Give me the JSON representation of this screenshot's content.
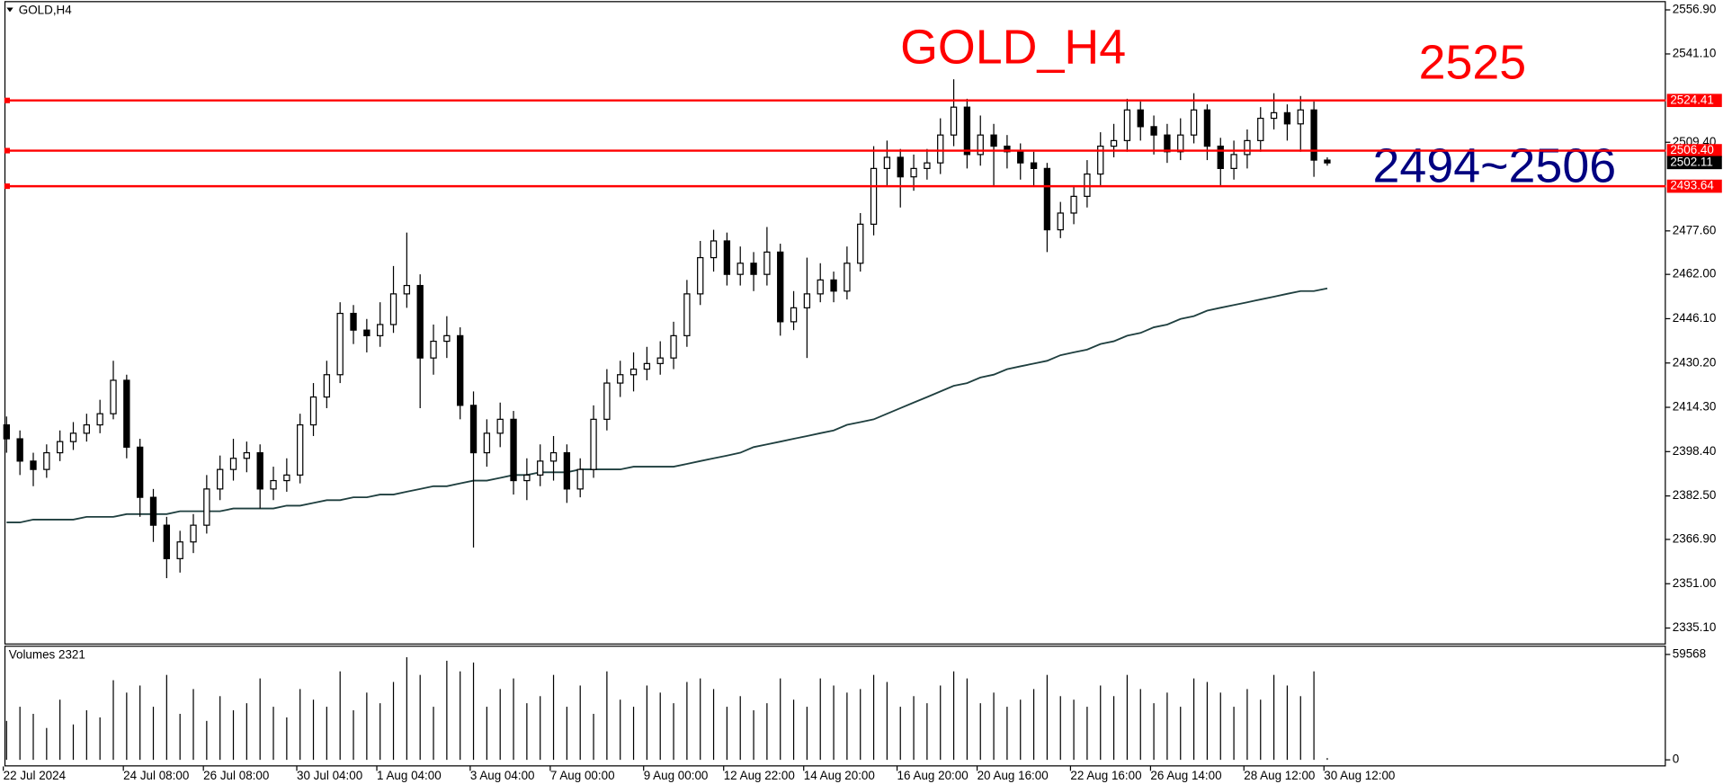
{
  "chart_data": {
    "type": "candlestick",
    "title": "GOLD,H4",
    "annotations": [
      "GOLD_H4",
      "2525",
      "2494~2506"
    ],
    "categories": [
      "22 Jul 2024",
      null,
      null,
      null,
      null,
      null,
      null,
      null,
      null,
      "24 Jul 08:00",
      null,
      null,
      null,
      null,
      null,
      "26 Jul 08:00",
      null,
      null,
      null,
      null,
      null,
      null,
      "30 Jul 04:00",
      null,
      null,
      null,
      null,
      null,
      "1 Aug 04:00",
      null,
      null,
      null,
      null,
      null,
      null,
      "3 Aug 04:00",
      null,
      null,
      null,
      null,
      null,
      "7 Aug 00:00",
      null,
      null,
      null,
      null,
      null,
      null,
      "9 Aug 00:00",
      null,
      null,
      null,
      null,
      null,
      "12 Aug 22:00",
      null,
      null,
      null,
      null,
      null,
      "14 Aug 20:00",
      null,
      null,
      null,
      null,
      null,
      null,
      "16 Aug 20:00",
      null,
      null,
      null,
      null,
      null,
      "20 Aug 16:00",
      null,
      null,
      null,
      null,
      null,
      null,
      "22 Aug 16:00",
      null,
      null,
      null,
      null,
      null,
      "26 Aug 14:00",
      null,
      null,
      null,
      null,
      null,
      null,
      "28 Aug 12:00",
      null,
      null,
      null,
      null,
      null,
      "30 Aug 12:00"
    ],
    "open": [
      2408,
      2403,
      2395,
      2392,
      2398,
      2402,
      2405,
      2408,
      2412,
      2424,
      2400,
      2382,
      2372,
      2360,
      2366,
      2372,
      2385,
      2392,
      2396,
      2398,
      2385,
      2388,
      2390,
      2408,
      2418,
      2426,
      2448,
      2442,
      2440,
      2444,
      2455,
      2458,
      2432,
      2438,
      2440,
      2415,
      2398,
      2405,
      2410,
      2388,
      2390,
      2395,
      2398,
      2385,
      2392,
      2410,
      2423,
      2426,
      2428,
      2430,
      2432,
      2440,
      2455,
      2468,
      2474,
      2462,
      2466,
      2462,
      2470,
      2445,
      2450,
      2455,
      2460,
      2456,
      2466,
      2480,
      2500,
      2504,
      2497,
      2500,
      2502,
      2512,
      2522,
      2505,
      2512,
      2508,
      2506,
      2502,
      2500,
      2478,
      2484,
      2490,
      2498,
      2508,
      2510,
      2521,
      2515,
      2512,
      2506,
      2512,
      2521,
      2508,
      2500,
      2505,
      2510,
      2518,
      2520,
      2516,
      2521,
      2503
    ],
    "high": [
      2411,
      2406,
      2398,
      2401,
      2406,
      2409,
      2412,
      2417,
      2431,
      2426,
      2403,
      2385,
      2375,
      2370,
      2376,
      2390,
      2397,
      2403,
      2402,
      2401,
      2393,
      2396,
      2412,
      2423,
      2431,
      2452,
      2451,
      2446,
      2452,
      2465,
      2477,
      2462,
      2444,
      2447,
      2443,
      2420,
      2410,
      2416,
      2413,
      2396,
      2401,
      2404,
      2401,
      2396,
      2415,
      2428,
      2431,
      2434,
      2436,
      2438,
      2445,
      2460,
      2474,
      2478,
      2477,
      2472,
      2470,
      2479,
      2473,
      2456,
      2468,
      2466,
      2463,
      2472,
      2484,
      2508,
      2510,
      2507,
      2505,
      2507,
      2518,
      2532,
      2525,
      2519,
      2516,
      2512,
      2509,
      2506,
      2502,
      2488,
      2494,
      2503,
      2513,
      2516,
      2525,
      2524,
      2519,
      2516,
      2518,
      2527,
      2523,
      2511,
      2510,
      2514,
      2522,
      2527,
      2523,
      2526,
      2524,
      2504
    ],
    "low": [
      2398,
      2390,
      2386,
      2389,
      2395,
      2399,
      2402,
      2405,
      2410,
      2396,
      2375,
      2366,
      2353,
      2355,
      2362,
      2369,
      2381,
      2388,
      2391,
      2378,
      2381,
      2384,
      2387,
      2404,
      2414,
      2423,
      2437,
      2434,
      2436,
      2441,
      2450,
      2414,
      2426,
      2432,
      2410,
      2364,
      2393,
      2400,
      2383,
      2381,
      2386,
      2388,
      2380,
      2382,
      2389,
      2406,
      2418,
      2420,
      2424,
      2426,
      2428,
      2436,
      2451,
      2463,
      2458,
      2458,
      2456,
      2458,
      2440,
      2442,
      2432,
      2452,
      2452,
      2453,
      2463,
      2476,
      2494,
      2486,
      2492,
      2496,
      2498,
      2508,
      2500,
      2501,
      2494,
      2500,
      2496,
      2494,
      2470,
      2475,
      2480,
      2486,
      2494,
      2504,
      2506,
      2510,
      2505,
      2502,
      2503,
      2509,
      2503,
      2494,
      2496,
      2500,
      2506,
      2514,
      2510,
      2506,
      2497,
      2501
    ],
    "close": [
      2403,
      2395,
      2392,
      2398,
      2402,
      2405,
      2408,
      2412,
      2424,
      2400,
      2382,
      2372,
      2360,
      2366,
      2372,
      2385,
      2392,
      2396,
      2398,
      2385,
      2388,
      2390,
      2408,
      2418,
      2426,
      2448,
      2442,
      2440,
      2444,
      2455,
      2458,
      2432,
      2438,
      2440,
      2415,
      2398,
      2405,
      2410,
      2388,
      2390,
      2395,
      2398,
      2385,
      2392,
      2410,
      2423,
      2426,
      2428,
      2430,
      2432,
      2440,
      2455,
      2468,
      2474,
      2462,
      2466,
      2462,
      2470,
      2445,
      2450,
      2455,
      2460,
      2456,
      2466,
      2480,
      2500,
      2504,
      2497,
      2500,
      2502,
      2512,
      2522,
      2505,
      2512,
      2508,
      2506,
      2502,
      2500,
      2478,
      2484,
      2490,
      2498,
      2508,
      2510,
      2521,
      2515,
      2512,
      2506,
      2512,
      2521,
      2508,
      2500,
      2505,
      2510,
      2518,
      2520,
      2516,
      2521,
      2503,
      2502
    ],
    "ma": {
      "color": "#1f3f3f",
      "values": [
        2373,
        2373,
        2374,
        2374,
        2374,
        2374,
        2375,
        2375,
        2375,
        2376,
        2376,
        2376,
        2376,
        2377,
        2377,
        2377,
        2377,
        2378,
        2378,
        2378,
        2378,
        2379,
        2379,
        2380,
        2381,
        2381,
        2382,
        2382,
        2383,
        2383,
        2384,
        2385,
        2386,
        2386,
        2387,
        2388,
        2388,
        2389,
        2390,
        2390,
        2391,
        2391,
        2391,
        2392,
        2392,
        2392,
        2392,
        2393,
        2393,
        2393,
        2393,
        2394,
        2395,
        2396,
        2397,
        2398,
        2400,
        2401,
        2402,
        2403,
        2404,
        2405,
        2406,
        2408,
        2409,
        2410,
        2412,
        2414,
        2416,
        2418,
        2420,
        2422,
        2423,
        2425,
        2426,
        2428,
        2429,
        2430,
        2431,
        2433,
        2434,
        2435,
        2437,
        2438,
        2440,
        2441,
        2443,
        2444,
        2446,
        2447,
        2449,
        2450,
        2451,
        2452,
        2453,
        2454,
        2455,
        2456,
        2456,
        2457
      ]
    },
    "color": "#000000",
    "ylim": [
      2329.57,
      2559.66
    ],
    "yticks": [
      {
        "value": 2335.1,
        "label": "2335.10"
      },
      {
        "value": 2351,
        "label": "2351.00"
      },
      {
        "value": 2366.9,
        "label": "2366.90"
      },
      {
        "value": 2382.5,
        "label": "2382.50"
      },
      {
        "value": 2398.4,
        "label": "2398.40"
      },
      {
        "value": 2414.3,
        "label": "2414.30"
      },
      {
        "value": 2430.2,
        "label": "2430.20"
      },
      {
        "value": 2446.1,
        "label": "2446.10"
      },
      {
        "value": 2462,
        "label": "2462.00"
      },
      {
        "value": 2477.6,
        "label": "2477.60"
      },
      {
        "value": 2509.4,
        "label": "2509.40"
      },
      {
        "value": 2541.1,
        "label": "2541.10"
      },
      {
        "value": 2556.9,
        "label": "2556.90"
      }
    ],
    "levels": [
      2524.41,
      {
        "value": 2506.4,
        "label": "2506.40"
      },
      2493.64
    ],
    "level_color": "#ff0000",
    "last_price": 2502.11,
    "volume": {
      "title": "Volumes 2321",
      "values": [
        22000,
        30000,
        26000,
        18000,
        34000,
        20000,
        28000,
        24000,
        45000,
        38000,
        42000,
        30000,
        48000,
        26000,
        40000,
        22000,
        36000,
        28000,
        32000,
        46000,
        30000,
        24000,
        40000,
        34000,
        30000,
        50000,
        28000,
        38000,
        32000,
        44000,
        58000,
        48000,
        30000,
        56000,
        50000,
        55000,
        30000,
        40000,
        46000,
        32000,
        36000,
        48000,
        30000,
        42000,
        26000,
        50000,
        34000,
        30000,
        42000,
        38000,
        32000,
        44000,
        46000,
        40000,
        30000,
        36000,
        28000,
        32000,
        46000,
        34000,
        30000,
        46000,
        42000,
        38000,
        40000,
        48000,
        44000,
        30000,
        36000,
        32000,
        42000,
        50000,
        46000,
        32000,
        38000,
        30000,
        34000,
        40000,
        48000,
        36000,
        34000,
        30000,
        42000,
        36000,
        48000,
        40000,
        32000,
        38000,
        30000,
        46000,
        44000,
        38000,
        30000,
        40000,
        34000,
        48000,
        42000,
        36000,
        50000,
        1000
      ],
      "ylim": [
        0,
        59568
      ],
      "yticks": [
        0,
        59568
      ]
    }
  }
}
